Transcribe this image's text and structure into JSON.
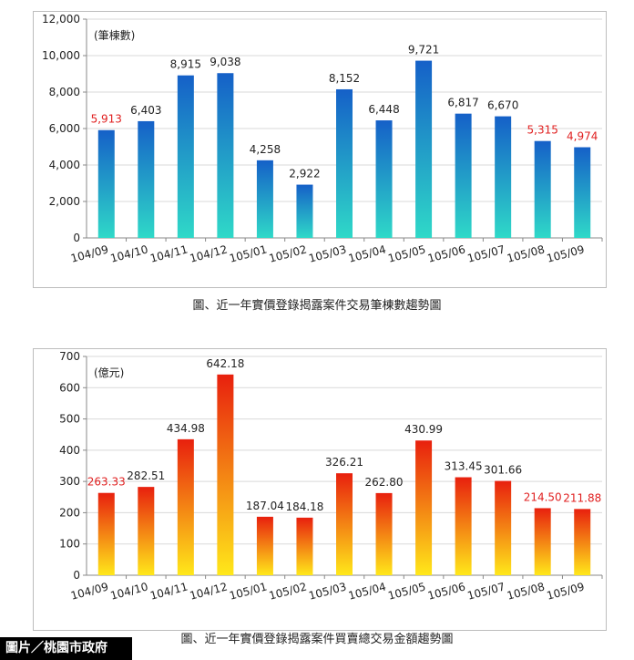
{
  "caption_1": "圖、近一年實價登錄揭露案件交易筆棟數趨勢圖",
  "caption_2": "圖、近一年實價登錄揭露案件買賣總交易金額趨勢圖",
  "credit": "圖片／桃園市政府",
  "chart_data": [
    {
      "type": "bar",
      "unit_label": "(筆棟數)",
      "categories": [
        "104/09",
        "104/10",
        "104/11",
        "104/12",
        "105/01",
        "105/02",
        "105/03",
        "105/04",
        "105/05",
        "105/06",
        "105/07",
        "105/08",
        "105/09"
      ],
      "values": [
        5913,
        6403,
        8915,
        9038,
        4258,
        2922,
        8152,
        6448,
        9721,
        6817,
        6670,
        5315,
        4974
      ],
      "value_labels": [
        "5,913",
        "6,403",
        "8,915",
        "9,038",
        "4,258",
        "2,922",
        "8,152",
        "6,448",
        "9,721",
        "6,817",
        "6,670",
        "5,315",
        "4,974"
      ],
      "highlight_labels": [
        true,
        false,
        false,
        false,
        false,
        false,
        false,
        false,
        false,
        false,
        false,
        true,
        true
      ],
      "ylim": [
        0,
        12000
      ],
      "yticks": [
        0,
        2000,
        4000,
        6000,
        8000,
        10000,
        12000
      ],
      "ytick_labels": [
        "0",
        "2,000",
        "4,000",
        "6,000",
        "8,000",
        "10,000",
        "12,000"
      ],
      "grid": true,
      "colors": {
        "bar_top": "#1560c8",
        "bar_bottom": "#2fd9c8",
        "label": "#222222",
        "highlight": "#e02020"
      }
    },
    {
      "type": "bar",
      "unit_label": "(億元)",
      "categories": [
        "104/09",
        "104/10",
        "104/11",
        "104/12",
        "105/01",
        "105/02",
        "105/03",
        "105/04",
        "105/05",
        "105/06",
        "105/07",
        "105/08",
        "105/09"
      ],
      "values": [
        263.33,
        282.51,
        434.98,
        642.18,
        187.04,
        184.18,
        326.21,
        262.8,
        430.99,
        313.45,
        301.66,
        214.5,
        211.88
      ],
      "value_labels": [
        "263.33",
        "282.51",
        "434.98",
        "642.18",
        "187.04",
        "184.18",
        "326.21",
        "262.80",
        "430.99",
        "313.45",
        "301.66",
        "214.50",
        "211.88"
      ],
      "highlight_labels": [
        true,
        false,
        false,
        false,
        false,
        false,
        false,
        false,
        false,
        false,
        false,
        true,
        true
      ],
      "ylim": [
        0,
        700
      ],
      "yticks": [
        0,
        100,
        200,
        300,
        400,
        500,
        600,
        700
      ],
      "ytick_labels": [
        "0",
        "100",
        "200",
        "300",
        "400",
        "500",
        "600",
        "700"
      ],
      "grid": true,
      "colors": {
        "bar_top": "#e8200e",
        "bar_bottom": "#ffe81a",
        "label": "#222222",
        "highlight": "#e02020"
      }
    }
  ]
}
